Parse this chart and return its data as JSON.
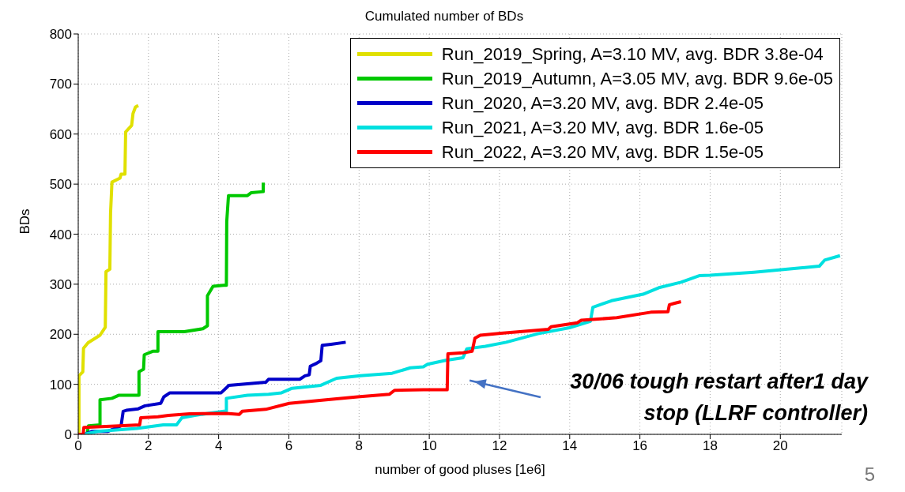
{
  "chart_data": {
    "type": "line",
    "title": "Cumulated number of BDs",
    "xlabel": "number of good pluses  [1e6]",
    "ylabel": "BDs",
    "xlim": [
      0,
      21.75
    ],
    "xticks": [
      0,
      2,
      4,
      6,
      8,
      10,
      12,
      14,
      16,
      18,
      20
    ],
    "ylim": [
      0,
      800
    ],
    "yticks": [
      0,
      100,
      200,
      300,
      400,
      500,
      600,
      700,
      800
    ],
    "grid": true,
    "legend": "top right",
    "marker": "none",
    "line_style": "solid",
    "annotations": [
      "30/06 tough restart after1 day stop (LLRF controller)",
      "5"
    ],
    "series": [
      {
        "name": "Run_2019_Spring,  A=3.10 MV,  avg. BDR 3.8e-04",
        "color": "#e0e000",
        "x": [
          0.02,
          0.02,
          0.13,
          0.15,
          0.28,
          0.62,
          0.77,
          0.79,
          0.9,
          0.92,
          0.96,
          1.19,
          1.22,
          1.33,
          1.35,
          1.52,
          1.56,
          1.63,
          1.71
        ],
        "values": [
          0,
          117,
          125,
          172,
          183,
          198,
          214,
          325,
          330,
          441,
          504,
          512,
          520,
          520,
          604,
          617,
          641,
          654,
          657
        ]
      },
      {
        "name": "Run_2019_Autumn,  A=3.05 MV,  avg. BDR 9.6e-05",
        "color": "#00c800",
        "x": [
          0.25,
          0.29,
          0.62,
          0.62,
          0.96,
          1.15,
          1.73,
          1.73,
          1.86,
          1.88,
          2.12,
          2.27,
          2.27,
          3.02,
          3.55,
          3.68,
          3.68,
          3.84,
          4.14,
          4.22,
          4.23,
          4.28,
          4.82,
          4.93,
          5.27,
          5.27
        ],
        "values": [
          0,
          17,
          19,
          69,
          72,
          78,
          78,
          125,
          130,
          159,
          166,
          166,
          205,
          205,
          211,
          217,
          277,
          296,
          298,
          298,
          425,
          477,
          477,
          483,
          485,
          503
        ]
      },
      {
        "name": "Run_2020,  A=3.20 MV,  avg. BDR 2.4e-05",
        "color": "#0000c8",
        "x": [
          0.17,
          0.4,
          0.85,
          1.22,
          1.28,
          1.37,
          1.71,
          1.9,
          2.35,
          2.44,
          2.61,
          4.07,
          4.22,
          4.29,
          5.34,
          5.42,
          6.31,
          6.46,
          6.58,
          6.61,
          6.76,
          6.91,
          6.95,
          7.2,
          7.62
        ],
        "values": [
          0,
          6,
          6,
          17,
          46,
          48,
          51,
          57,
          62,
          75,
          83,
          83,
          93,
          98,
          104,
          110,
          110,
          117,
          119,
          136,
          141,
          147,
          178,
          180,
          184
        ]
      },
      {
        "name": "Run_2021,  A=3.20 MV,  avg. BDR 1.6e-05",
        "color": "#00e0e0",
        "x": [
          0.17,
          0.55,
          1.67,
          2.42,
          2.8,
          2.95,
          3.32,
          4.15,
          4.22,
          4.22,
          4.82,
          5.42,
          5.79,
          6.09,
          6.91,
          7.36,
          8.04,
          8.94,
          9.46,
          9.83,
          9.95,
          10.47,
          10.96,
          11.07,
          11.6,
          12.19,
          13.09,
          13.99,
          14.59,
          14.66,
          15.19,
          16.09,
          16.54,
          17.17,
          17.69,
          18,
          19.25,
          20.51,
          21.11,
          21.26,
          21.7
        ],
        "values": [
          0,
          6,
          12,
          19,
          19,
          33,
          38,
          46,
          46,
          72,
          78,
          80,
          83,
          92,
          98,
          112,
          117,
          122,
          133,
          135,
          140,
          148,
          153,
          171,
          176,
          184,
          201,
          213,
          226,
          254,
          267,
          280,
          293,
          304,
          317,
          318,
          324,
          332,
          336,
          348,
          357
        ]
      },
      {
        "name": "Run_2022,  A=3.20 MV,  avg. BDR 1.5e-05",
        "color": "#ff0000",
        "x": [
          0,
          0.14,
          0.16,
          0.92,
          1.75,
          1.78,
          2.27,
          2.57,
          3.17,
          4.22,
          4.59,
          4.67,
          5.34,
          6.01,
          7.06,
          7.96,
          8.86,
          9.01,
          9.83,
          10.51,
          10.53,
          10.96,
          11.22,
          11.3,
          11.45,
          12.04,
          13.39,
          13.47,
          14.22,
          14.33,
          15.34,
          16.31,
          16.8,
          16.84,
          16.99,
          17.17
        ],
        "values": [
          0,
          0,
          14,
          16,
          19,
          33,
          35,
          38,
          41,
          42,
          40,
          46,
          50,
          62,
          69,
          75,
          80,
          88,
          89,
          89,
          161,
          163,
          166,
          192,
          198,
          202,
          210,
          215,
          223,
          228,
          233,
          244,
          245,
          259,
          262,
          265
        ]
      }
    ]
  }
}
